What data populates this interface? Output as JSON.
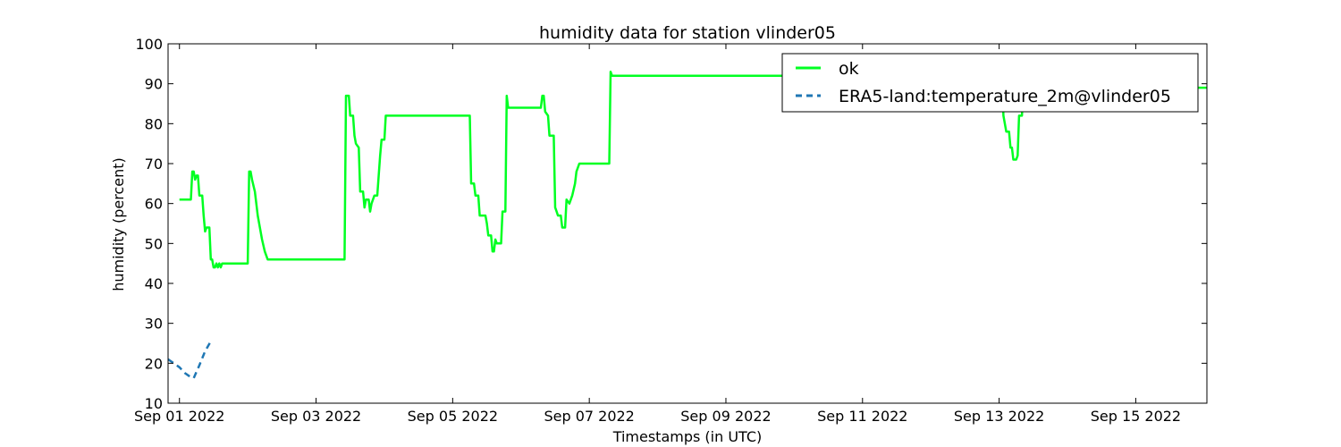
{
  "chart_data": {
    "type": "line",
    "title": "humidity data for station vlinder05",
    "xlabel": "Timestamps (in UTC)",
    "ylabel": "humidity (percent)",
    "ylim": [
      10,
      100
    ],
    "yticks": [
      10,
      20,
      30,
      40,
      50,
      60,
      70,
      80,
      90,
      100
    ],
    "xlim": [
      "2022-08-31 20:00",
      "2022-09-16 01:00"
    ],
    "xticks": [
      {
        "at": "2022-09-01 00:00",
        "label": "Sep 01 2022"
      },
      {
        "at": "2022-09-03 00:00",
        "label": "Sep 03 2022"
      },
      {
        "at": "2022-09-05 00:00",
        "label": "Sep 05 2022"
      },
      {
        "at": "2022-09-07 00:00",
        "label": "Sep 07 2022"
      },
      {
        "at": "2022-09-09 00:00",
        "label": "Sep 09 2022"
      },
      {
        "at": "2022-09-11 00:00",
        "label": "Sep 11 2022"
      },
      {
        "at": "2022-09-13 00:00",
        "label": "Sep 13 2022"
      },
      {
        "at": "2022-09-15 00:00",
        "label": "Sep 15 2022"
      }
    ],
    "grid": false,
    "legend_position": "top-right",
    "series": [
      {
        "name": "ok",
        "color": "#00ff22",
        "style": "solid",
        "points": [
          [
            "2022-09-01 00:00",
            61
          ],
          [
            "2022-09-01 04:00",
            61
          ],
          [
            "2022-09-01 04:30",
            68
          ],
          [
            "2022-09-01 05:00",
            68
          ],
          [
            "2022-09-01 05:30",
            66
          ],
          [
            "2022-09-01 06:00",
            67
          ],
          [
            "2022-09-01 06:30",
            67
          ],
          [
            "2022-09-01 07:00",
            62
          ],
          [
            "2022-09-01 08:00",
            62
          ],
          [
            "2022-09-01 08:30",
            57
          ],
          [
            "2022-09-01 09:00",
            53
          ],
          [
            "2022-09-01 09:30",
            54
          ],
          [
            "2022-09-01 10:30",
            54
          ],
          [
            "2022-09-01 11:00",
            46
          ],
          [
            "2022-09-01 11:30",
            46
          ],
          [
            "2022-09-01 12:00",
            44
          ],
          [
            "2022-09-01 12:30",
            44
          ],
          [
            "2022-09-01 13:00",
            45
          ],
          [
            "2022-09-01 13:30",
            44
          ],
          [
            "2022-09-01 14:00",
            45
          ],
          [
            "2022-09-01 14:30",
            44
          ],
          [
            "2022-09-01 15:00",
            45
          ],
          [
            "2022-09-02 00:00",
            45
          ],
          [
            "2022-09-02 00:30",
            68
          ],
          [
            "2022-09-02 01:00",
            68
          ],
          [
            "2022-09-02 01:30",
            66
          ],
          [
            "2022-09-02 02:30",
            63
          ],
          [
            "2022-09-02 03:30",
            57
          ],
          [
            "2022-09-02 05:00",
            51
          ],
          [
            "2022-09-02 06:00",
            48
          ],
          [
            "2022-09-02 07:00",
            46
          ],
          [
            "2022-09-03 10:00",
            46
          ],
          [
            "2022-09-03 10:30",
            87
          ],
          [
            "2022-09-03 11:30",
            87
          ],
          [
            "2022-09-03 12:00",
            82
          ],
          [
            "2022-09-03 13:00",
            82
          ],
          [
            "2022-09-03 13:30",
            77
          ],
          [
            "2022-09-03 14:00",
            75
          ],
          [
            "2022-09-03 15:00",
            74
          ],
          [
            "2022-09-03 15:30",
            63
          ],
          [
            "2022-09-03 16:30",
            63
          ],
          [
            "2022-09-03 17:00",
            59
          ],
          [
            "2022-09-03 17:30",
            61
          ],
          [
            "2022-09-03 18:30",
            61
          ],
          [
            "2022-09-03 19:00",
            58
          ],
          [
            "2022-09-03 19:30",
            60
          ],
          [
            "2022-09-03 20:30",
            62
          ],
          [
            "2022-09-03 21:30",
            62
          ],
          [
            "2022-09-03 22:00",
            67
          ],
          [
            "2022-09-03 22:30",
            72
          ],
          [
            "2022-09-03 23:00",
            76
          ],
          [
            "2022-09-04 00:00",
            76
          ],
          [
            "2022-09-04 00:30",
            82
          ],
          [
            "2022-09-05 06:00",
            82
          ],
          [
            "2022-09-05 06:30",
            65
          ],
          [
            "2022-09-05 07:30",
            65
          ],
          [
            "2022-09-05 08:00",
            62
          ],
          [
            "2022-09-05 09:00",
            62
          ],
          [
            "2022-09-05 09:30",
            57
          ],
          [
            "2022-09-05 11:30",
            57
          ],
          [
            "2022-09-05 12:00",
            55
          ],
          [
            "2022-09-05 12:30",
            52
          ],
          [
            "2022-09-05 13:30",
            52
          ],
          [
            "2022-09-05 14:00",
            48
          ],
          [
            "2022-09-05 14:30",
            48
          ],
          [
            "2022-09-05 15:00",
            51
          ],
          [
            "2022-09-05 15:30",
            50
          ],
          [
            "2022-09-05 17:00",
            50
          ],
          [
            "2022-09-05 17:30",
            58
          ],
          [
            "2022-09-05 18:30",
            58
          ],
          [
            "2022-09-05 19:00",
            87
          ],
          [
            "2022-09-05 19:30",
            84
          ],
          [
            "2022-09-06 07:00",
            84
          ],
          [
            "2022-09-06 07:30",
            87
          ],
          [
            "2022-09-06 08:00",
            87
          ],
          [
            "2022-09-06 08:30",
            83
          ],
          [
            "2022-09-06 09:30",
            82
          ],
          [
            "2022-09-06 10:00",
            77
          ],
          [
            "2022-09-06 11:30",
            77
          ],
          [
            "2022-09-06 12:00",
            59
          ],
          [
            "2022-09-06 12:30",
            58
          ],
          [
            "2022-09-06 13:00",
            57
          ],
          [
            "2022-09-06 14:00",
            57
          ],
          [
            "2022-09-06 14:30",
            54
          ],
          [
            "2022-09-06 15:30",
            54
          ],
          [
            "2022-09-06 16:00",
            61
          ],
          [
            "2022-09-06 17:00",
            60
          ],
          [
            "2022-09-06 18:00",
            62
          ],
          [
            "2022-09-06 19:00",
            65
          ],
          [
            "2022-09-06 19:30",
            68
          ],
          [
            "2022-09-06 20:30",
            70
          ],
          [
            "2022-09-07 07:00",
            70
          ],
          [
            "2022-09-07 07:30",
            93
          ],
          [
            "2022-09-07 08:00",
            92
          ],
          [
            "2022-09-13 01:00",
            92
          ],
          [
            "2022-09-13 01:30",
            82
          ],
          [
            "2022-09-13 02:30",
            78
          ],
          [
            "2022-09-13 03:30",
            78
          ],
          [
            "2022-09-13 04:00",
            74
          ],
          [
            "2022-09-13 04:30",
            74
          ],
          [
            "2022-09-13 05:00",
            71
          ],
          [
            "2022-09-13 06:00",
            71
          ],
          [
            "2022-09-13 06:30",
            72
          ],
          [
            "2022-09-13 07:00",
            82
          ],
          [
            "2022-09-13 08:00",
            82
          ],
          [
            "2022-09-13 08:30",
            89
          ],
          [
            "2022-09-16 01:00",
            89
          ]
        ]
      },
      {
        "name": "ERA5-land:temperature_2m@vlinder05",
        "color": "#1f77b4",
        "style": "dashed",
        "points": [
          [
            "2022-08-31 20:00",
            21
          ],
          [
            "2022-08-31 22:00",
            20
          ],
          [
            "2022-09-01 00:00",
            19
          ],
          [
            "2022-09-01 02:00",
            17.5
          ],
          [
            "2022-09-01 04:00",
            16.5
          ],
          [
            "2022-09-01 05:00",
            16.3
          ],
          [
            "2022-09-01 07:00",
            19.5
          ],
          [
            "2022-09-01 09:00",
            23
          ],
          [
            "2022-09-01 11:00",
            25.5
          ]
        ]
      }
    ]
  }
}
